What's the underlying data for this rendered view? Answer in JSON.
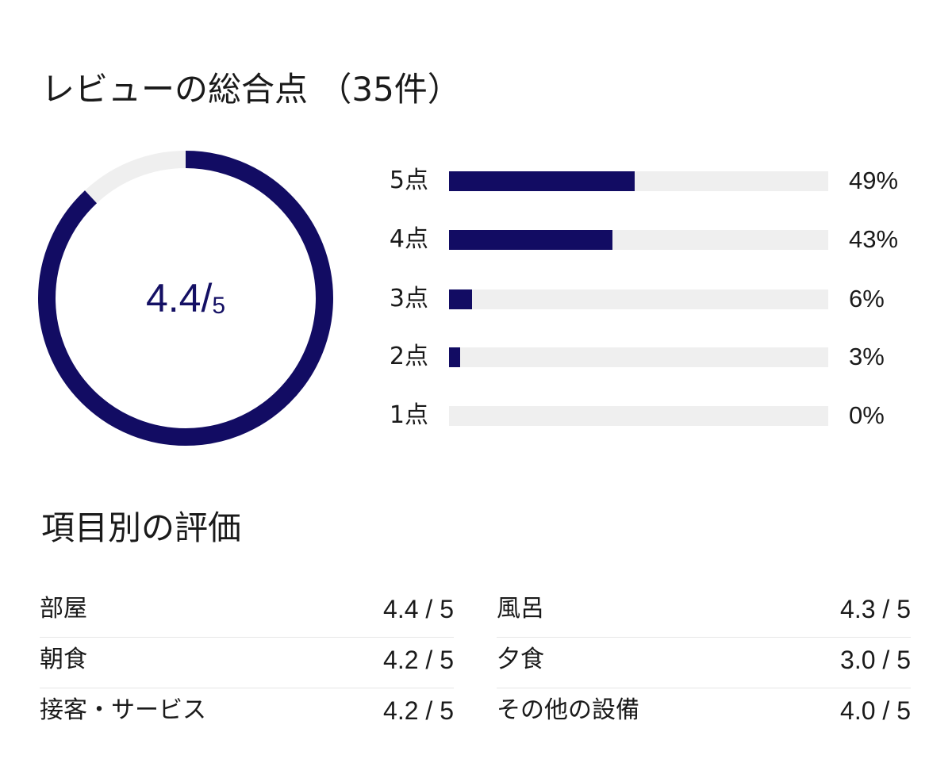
{
  "overall": {
    "title": "レビューの総合点 （35件）",
    "score": "4.4",
    "slash": "/",
    "max": "5",
    "score_fraction": 0.88
  },
  "distribution": [
    {
      "label": "5点",
      "percent_text": "49%",
      "percent": 49
    },
    {
      "label": "4点",
      "percent_text": "43%",
      "percent": 43
    },
    {
      "label": "3点",
      "percent_text": "6%",
      "percent": 6
    },
    {
      "label": "2点",
      "percent_text": "3%",
      "percent": 3
    },
    {
      "label": "1点",
      "percent_text": "0%",
      "percent": 0
    }
  ],
  "categories": {
    "title": "項目別の評価",
    "left": [
      {
        "name": "部屋",
        "score": "4.4 / 5"
      },
      {
        "name": "朝食",
        "score": "4.2 / 5"
      },
      {
        "name": "接客・サービス",
        "score": "4.2 / 5"
      }
    ],
    "right": [
      {
        "name": "風呂",
        "score": "4.3 / 5"
      },
      {
        "name": "夕食",
        "score": "3.0 / 5"
      },
      {
        "name": "その他の設備",
        "score": "4.0 / 5"
      }
    ]
  },
  "colors": {
    "accent": "#120c63",
    "track": "#efefef",
    "divider": "#e6e6e6",
    "text": "#1a1a1a"
  }
}
